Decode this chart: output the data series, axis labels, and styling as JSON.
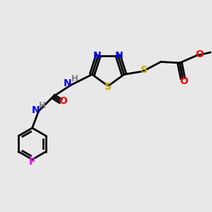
{
  "bg_color": "#e8e8e8",
  "atom_colors": {
    "N": "#0000ff",
    "S": "#ccaa00",
    "O": "#ff0000",
    "F": "#ff00ff",
    "C": "#000000",
    "H": "#808080"
  },
  "bond_color": "#000000",
  "title": "",
  "figsize": [
    3.0,
    3.0
  ],
  "dpi": 100
}
